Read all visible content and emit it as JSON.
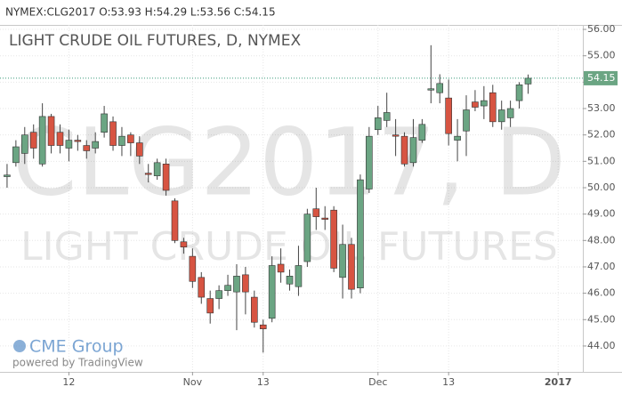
{
  "chart_data": {
    "type": "candlestick",
    "header": "NYMEX:CLG2017 O:53.93 H:54.29 L:53.56 C:54.15",
    "title": "LIGHT CRUDE OIL FUTURES, D, NYMEX",
    "watermark": [
      "CLG2017, D",
      "LIGHT CRUDE OIL FUTURES"
    ],
    "logo": "CME Group",
    "credit": "powered by TradingView",
    "series": {
      "open": [
        50.42,
        50.95,
        51.3,
        52.1,
        50.9,
        52.7,
        52.1,
        51.5,
        51.8,
        51.6,
        51.5,
        52.1,
        52.5,
        51.6,
        52.0,
        51.7,
        50.55,
        50.45,
        50.9,
        49.5,
        47.95,
        47.4,
        46.6,
        45.8,
        45.8,
        46.1,
        46.05,
        46.7,
        45.85,
        44.8,
        45.05,
        47.1,
        46.35,
        46.25,
        47.2,
        49.2,
        48.85,
        49.15,
        46.6,
        47.85,
        46.2,
        49.95,
        52.2,
        52.55,
        52.0,
        51.95,
        50.95,
        51.8,
        53.7,
        53.6,
        53.4,
        51.8,
        52.15,
        53.25,
        53.1,
        53.6,
        52.5,
        52.65,
        53.3,
        53.93
      ],
      "high": [
        50.9,
        51.8,
        52.3,
        52.4,
        53.2,
        52.8,
        52.4,
        52.2,
        52.0,
        51.8,
        52.1,
        53.1,
        52.7,
        52.3,
        52.1,
        51.95,
        50.9,
        51.1,
        51.1,
        49.6,
        48.1,
        47.7,
        46.8,
        46.1,
        46.3,
        46.7,
        47.1,
        47.0,
        46.1,
        45.0,
        47.4,
        47.7,
        46.9,
        47.8,
        49.2,
        50.0,
        49.3,
        49.3,
        48.6,
        48.1,
        50.5,
        52.3,
        53.1,
        53.6,
        52.6,
        52.1,
        52.6,
        52.6,
        55.4,
        54.3,
        54.1,
        52.6,
        53.5,
        53.7,
        53.85,
        53.9,
        53.3,
        53.3,
        54.0,
        54.29
      ],
      "low": [
        50.0,
        50.8,
        50.9,
        51.1,
        50.8,
        51.3,
        51.3,
        51.0,
        51.4,
        51.1,
        51.3,
        51.9,
        51.4,
        51.2,
        51.2,
        50.9,
        50.2,
        50.3,
        49.7,
        47.9,
        47.5,
        46.2,
        45.6,
        44.85,
        45.4,
        45.9,
        44.6,
        45.2,
        44.7,
        43.75,
        44.9,
        46.4,
        46.1,
        45.9,
        47.0,
        48.4,
        48.4,
        46.8,
        45.8,
        45.8,
        46.0,
        49.8,
        52.0,
        52.3,
        51.2,
        50.8,
        50.8,
        51.7,
        53.2,
        53.2,
        51.6,
        51.0,
        51.2,
        52.9,
        52.6,
        52.3,
        52.2,
        52.3,
        53.0,
        53.56
      ],
      "close": [
        50.48,
        51.55,
        52.0,
        51.5,
        52.7,
        51.6,
        51.6,
        51.8,
        51.75,
        51.4,
        51.75,
        52.8,
        51.6,
        51.95,
        51.7,
        51.2,
        50.5,
        50.95,
        49.9,
        48.0,
        47.75,
        46.45,
        45.85,
        45.25,
        46.1,
        46.3,
        46.65,
        46.05,
        44.9,
        44.65,
        47.05,
        46.8,
        46.65,
        47.05,
        49.0,
        48.9,
        48.8,
        46.95,
        47.85,
        46.15,
        50.3,
        51.95,
        52.65,
        52.85,
        51.95,
        50.9,
        51.9,
        52.4,
        53.75,
        53.95,
        52.05,
        51.95,
        52.95,
        53.05,
        53.3,
        52.5,
        52.95,
        53.0,
        53.9,
        54.15
      ]
    },
    "up_color": "#6ba583",
    "down_color": "#d75442",
    "last_price": {
      "value": 54.15,
      "label": "54.15"
    },
    "ylim": [
      43.02,
      56.17
    ],
    "yticks": [
      {
        "value": 44,
        "label": "44.00"
      },
      {
        "value": 45,
        "label": "45.00"
      },
      {
        "value": 46,
        "label": "46.00"
      },
      {
        "value": 47,
        "label": "47.00"
      },
      {
        "value": 48,
        "label": "48.00"
      },
      {
        "value": 49,
        "label": "49.00"
      },
      {
        "value": 50,
        "label": "50.00"
      },
      {
        "value": 51,
        "label": "51.00"
      },
      {
        "value": 52,
        "label": "52.00"
      },
      {
        "value": 53,
        "label": "53.00"
      },
      {
        "value": 54,
        "label": "54.00"
      },
      {
        "value": 55,
        "label": "55.00"
      },
      {
        "value": 56,
        "label": "56.00"
      }
    ],
    "xlim": [
      -0.8,
      65.2
    ],
    "xticks": [
      {
        "value": 7,
        "label": "12"
      },
      {
        "value": 21,
        "label": "Nov"
      },
      {
        "value": 29,
        "label": "13"
      },
      {
        "value": 42,
        "label": "Dec"
      },
      {
        "value": 50,
        "label": "13"
      },
      {
        "value": 62.4,
        "label": "2017"
      }
    ],
    "grid": true
  }
}
